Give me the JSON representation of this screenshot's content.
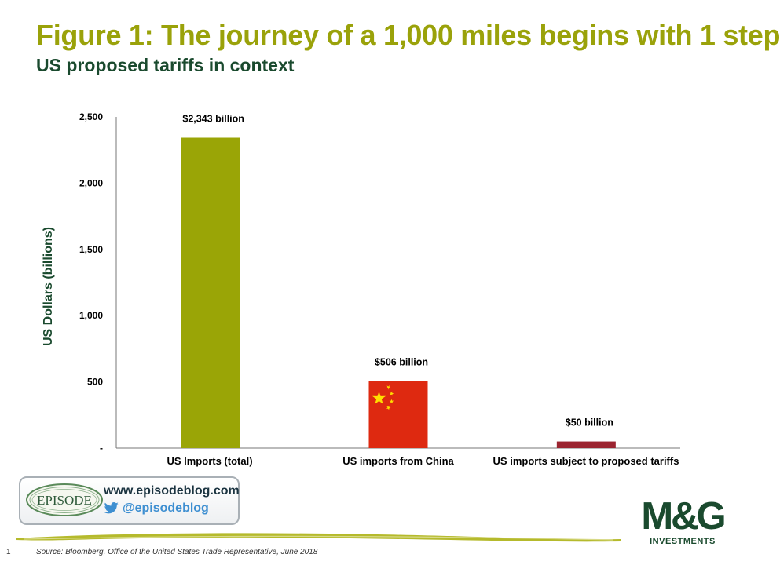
{
  "header": {
    "title": "Figure 1: The journey of a 1,000 miles begins with 1 step",
    "subtitle": "US proposed tariffs in context"
  },
  "chart_data": {
    "type": "bar",
    "categories": [
      "US Imports (total)",
      "US imports from China",
      "US imports subject to proposed tariffs"
    ],
    "values": [
      2343,
      506,
      50
    ],
    "data_labels": [
      "$2,343 billion",
      "$506 billion",
      "$50 billion"
    ],
    "bar_colors": [
      "#9aa506",
      "#de2910",
      "#9b2430"
    ],
    "ylabel": "US Dollars (billions)",
    "ylim": [
      0,
      2500
    ],
    "yticks": [
      0,
      500,
      1000,
      1500,
      2000,
      2500
    ],
    "ytick_labels": [
      "-",
      "500",
      "1,000",
      "1,500",
      "2,000",
      "2,500"
    ],
    "grid": false,
    "legend": "none"
  },
  "footer": {
    "episode_logo_text": "EPISODE",
    "episode_url": "www.episodeblog.com",
    "episode_handle": "@episodeblog",
    "mg_logo_text": "M&G",
    "mg_logo_sub": "INVESTMENTS",
    "page_number": "1",
    "source": "Source: Bloomberg, Office of the United States Trade Representative, June 2018"
  },
  "colors": {
    "title": "#9aa20a",
    "subtitle": "#1a4a2e",
    "brand_green": "#1a4a2e",
    "twitter_blue": "#3e8fd1"
  }
}
